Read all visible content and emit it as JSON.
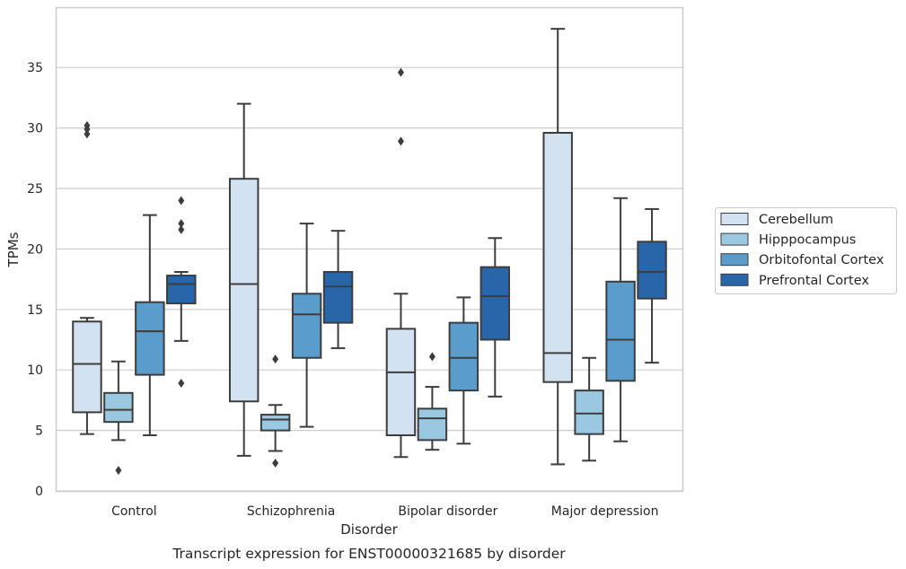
{
  "chart_data": {
    "type": "box",
    "title": "",
    "caption": "Transcript expression for ENST00000321685 by disorder",
    "xlabel": "Disorder",
    "ylabel": "TPMs",
    "ylim": [
      0,
      40
    ],
    "yticks": [
      "0",
      "5",
      "10",
      "15",
      "20",
      "25",
      "30",
      "35"
    ],
    "grid": "horizontal",
    "legend_position": "right",
    "categories": [
      "Control",
      "Schizophrenia",
      "Bipolar disorder",
      "Major depression"
    ],
    "series": [
      {
        "name": "Cerebellum",
        "color": "#d2e2f1",
        "boxes": [
          {
            "whislo": 4.7,
            "q1": 6.5,
            "med": 10.5,
            "q3": 14.0,
            "whishi": 14.3,
            "fliers": [
              29.5,
              29.9,
              30.2
            ]
          },
          {
            "whislo": 2.9,
            "q1": 7.4,
            "med": 17.1,
            "q3": 25.8,
            "whishi": 32.0,
            "fliers": []
          },
          {
            "whislo": 2.8,
            "q1": 4.6,
            "med": 9.8,
            "q3": 13.4,
            "whishi": 16.3,
            "fliers": [
              28.9,
              34.6
            ]
          },
          {
            "whislo": 2.2,
            "q1": 9.0,
            "med": 11.4,
            "q3": 29.6,
            "whishi": 38.2,
            "fliers": []
          }
        ]
      },
      {
        "name": "Hipppocampus",
        "color": "#9ac8e0",
        "boxes": [
          {
            "whislo": 4.2,
            "q1": 5.7,
            "med": 6.7,
            "q3": 8.1,
            "whishi": 10.7,
            "fliers": [
              1.7
            ]
          },
          {
            "whislo": 3.3,
            "q1": 5.0,
            "med": 5.9,
            "q3": 6.3,
            "whishi": 7.1,
            "fliers": [
              2.3,
              10.9
            ]
          },
          {
            "whislo": 3.4,
            "q1": 4.2,
            "med": 6.0,
            "q3": 6.8,
            "whishi": 8.6,
            "fliers": [
              11.1
            ]
          },
          {
            "whislo": 2.5,
            "q1": 4.7,
            "med": 6.4,
            "q3": 8.3,
            "whishi": 11.0,
            "fliers": []
          }
        ]
      },
      {
        "name": "Orbitofontal Cortex",
        "color": "#5a9dcc",
        "boxes": [
          {
            "whislo": 4.6,
            "q1": 9.6,
            "med": 13.2,
            "q3": 15.6,
            "whishi": 22.8,
            "fliers": []
          },
          {
            "whislo": 5.3,
            "q1": 11.0,
            "med": 14.6,
            "q3": 16.3,
            "whishi": 22.1,
            "fliers": []
          },
          {
            "whislo": 3.9,
            "q1": 8.3,
            "med": 11.0,
            "q3": 13.9,
            "whishi": 16.0,
            "fliers": []
          },
          {
            "whislo": 4.1,
            "q1": 9.1,
            "med": 12.5,
            "q3": 17.3,
            "whishi": 24.2,
            "fliers": []
          }
        ]
      },
      {
        "name": "Prefrontal Cortex",
        "color": "#2866a9",
        "boxes": [
          {
            "whislo": 12.4,
            "q1": 15.5,
            "med": 17.1,
            "q3": 17.8,
            "whishi": 18.1,
            "fliers": [
              8.9,
              21.6,
              22.1,
              24.0
            ]
          },
          {
            "whislo": 11.8,
            "q1": 13.9,
            "med": 16.9,
            "q3": 18.1,
            "whishi": 21.5,
            "fliers": []
          },
          {
            "whislo": 7.8,
            "q1": 12.5,
            "med": 16.1,
            "q3": 18.5,
            "whishi": 20.9,
            "fliers": []
          },
          {
            "whislo": 10.6,
            "q1": 15.9,
            "med": 18.1,
            "q3": 20.6,
            "whishi": 23.3,
            "fliers": []
          }
        ]
      }
    ]
  }
}
